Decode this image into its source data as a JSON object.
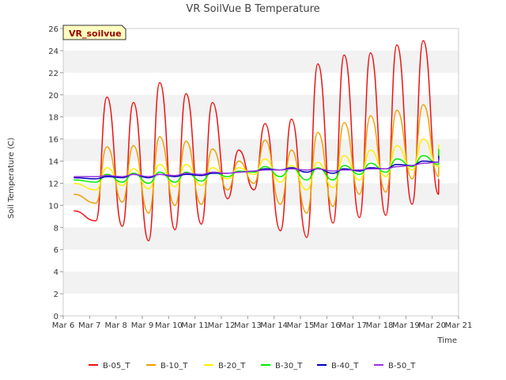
{
  "chart_data": {
    "type": "line",
    "title": "VR SoilVue B Temperature",
    "xlabel": "Time",
    "ylabel": "Soil Temperature (C)",
    "site_label": "VR_soilvue",
    "x_tick_labels": [
      "Mar 6",
      "Mar 7",
      "Mar 8",
      "Mar 9",
      "Mar 10",
      "Mar 11",
      "Mar 12",
      "Mar 13",
      "Mar 14",
      "Mar 15",
      "Mar 16",
      "Mar 17",
      "Mar 18",
      "Mar 19",
      "Mar 20",
      "Mar 21"
    ],
    "xlim": [
      0,
      15
    ],
    "x_units": "days since Mar 6",
    "ylim": [
      0,
      26
    ],
    "y_ticks": [
      0,
      2,
      4,
      6,
      8,
      10,
      12,
      14,
      16,
      18,
      20,
      22,
      24,
      26
    ],
    "grid": "horizontal bands",
    "legend_position": "bottom",
    "series": [
      {
        "name": "B-05_T",
        "color": "#ee1111",
        "day_max": [
          19.8,
          19.3,
          21.1,
          20.1,
          19.3,
          15.0,
          17.4,
          17.8,
          22.8,
          23.6,
          23.8,
          24.5,
          24.9,
          25.6
        ],
        "day_min": [
          8.6,
          8.1,
          6.8,
          7.8,
          8.3,
          10.6,
          11.4,
          7.7,
          7.1,
          8.4,
          8.9,
          9.1,
          10.1,
          11.0
        ],
        "start": 9.5,
        "end": 12.4
      },
      {
        "name": "B-10_T",
        "color": "#f0a000",
        "day_max": [
          15.3,
          15.4,
          16.2,
          15.8,
          15.1,
          14.0,
          15.9,
          15.0,
          16.6,
          17.5,
          18.1,
          18.6,
          19.1,
          19.8
        ],
        "day_min": [
          10.2,
          10.3,
          9.3,
          10.0,
          10.1,
          11.4,
          12.0,
          10.1,
          9.3,
          9.9,
          11.0,
          11.2,
          12.4,
          12.6
        ],
        "start": 11.0,
        "end": 15.0
      },
      {
        "name": "B-20_T",
        "color": "#ffee00",
        "day_max": [
          13.4,
          13.3,
          13.7,
          13.7,
          13.4,
          13.4,
          14.2,
          13.6,
          13.9,
          14.5,
          15.0,
          15.4,
          16.0,
          16.4
        ],
        "day_min": [
          11.4,
          11.8,
          11.5,
          11.7,
          11.8,
          12.4,
          12.8,
          12.1,
          11.4,
          11.6,
          12.3,
          12.6,
          13.2,
          13.5
        ],
        "start": 12.0,
        "end": 15.5
      },
      {
        "name": "B-30_T",
        "color": "#00ee00",
        "day_max": [
          12.8,
          12.9,
          13.0,
          13.0,
          13.0,
          13.1,
          13.5,
          13.4,
          13.4,
          13.6,
          13.8,
          14.2,
          14.5,
          14.9
        ],
        "day_min": [
          12.1,
          12.1,
          12.0,
          12.1,
          12.2,
          12.6,
          13.0,
          12.6,
          12.3,
          12.3,
          12.8,
          13.0,
          13.5,
          13.7
        ],
        "start": 12.3,
        "end": 15.1
      },
      {
        "name": "B-40_T",
        "color": "#0000bb",
        "day_max": [
          12.6,
          12.8,
          12.8,
          12.8,
          12.9,
          13.0,
          13.3,
          13.4,
          13.3,
          13.3,
          13.4,
          13.7,
          14.0,
          14.3
        ],
        "day_min": [
          12.4,
          12.5,
          12.5,
          12.6,
          12.7,
          12.9,
          13.1,
          13.2,
          13.0,
          12.9,
          13.1,
          13.3,
          13.6,
          13.9
        ],
        "start": 12.5,
        "end": 14.5
      },
      {
        "name": "B-50_T",
        "color": "#9933dd",
        "day_max": [
          12.7,
          12.8,
          12.8,
          12.9,
          13.0,
          13.0,
          13.2,
          13.3,
          13.3,
          13.2,
          13.3,
          13.5,
          13.8,
          14.0
        ],
        "day_min": [
          12.6,
          12.6,
          12.6,
          12.7,
          12.8,
          12.9,
          13.1,
          13.2,
          13.2,
          13.1,
          13.2,
          13.3,
          13.6,
          13.9
        ],
        "start": 12.6,
        "end": 14.2
      }
    ]
  }
}
